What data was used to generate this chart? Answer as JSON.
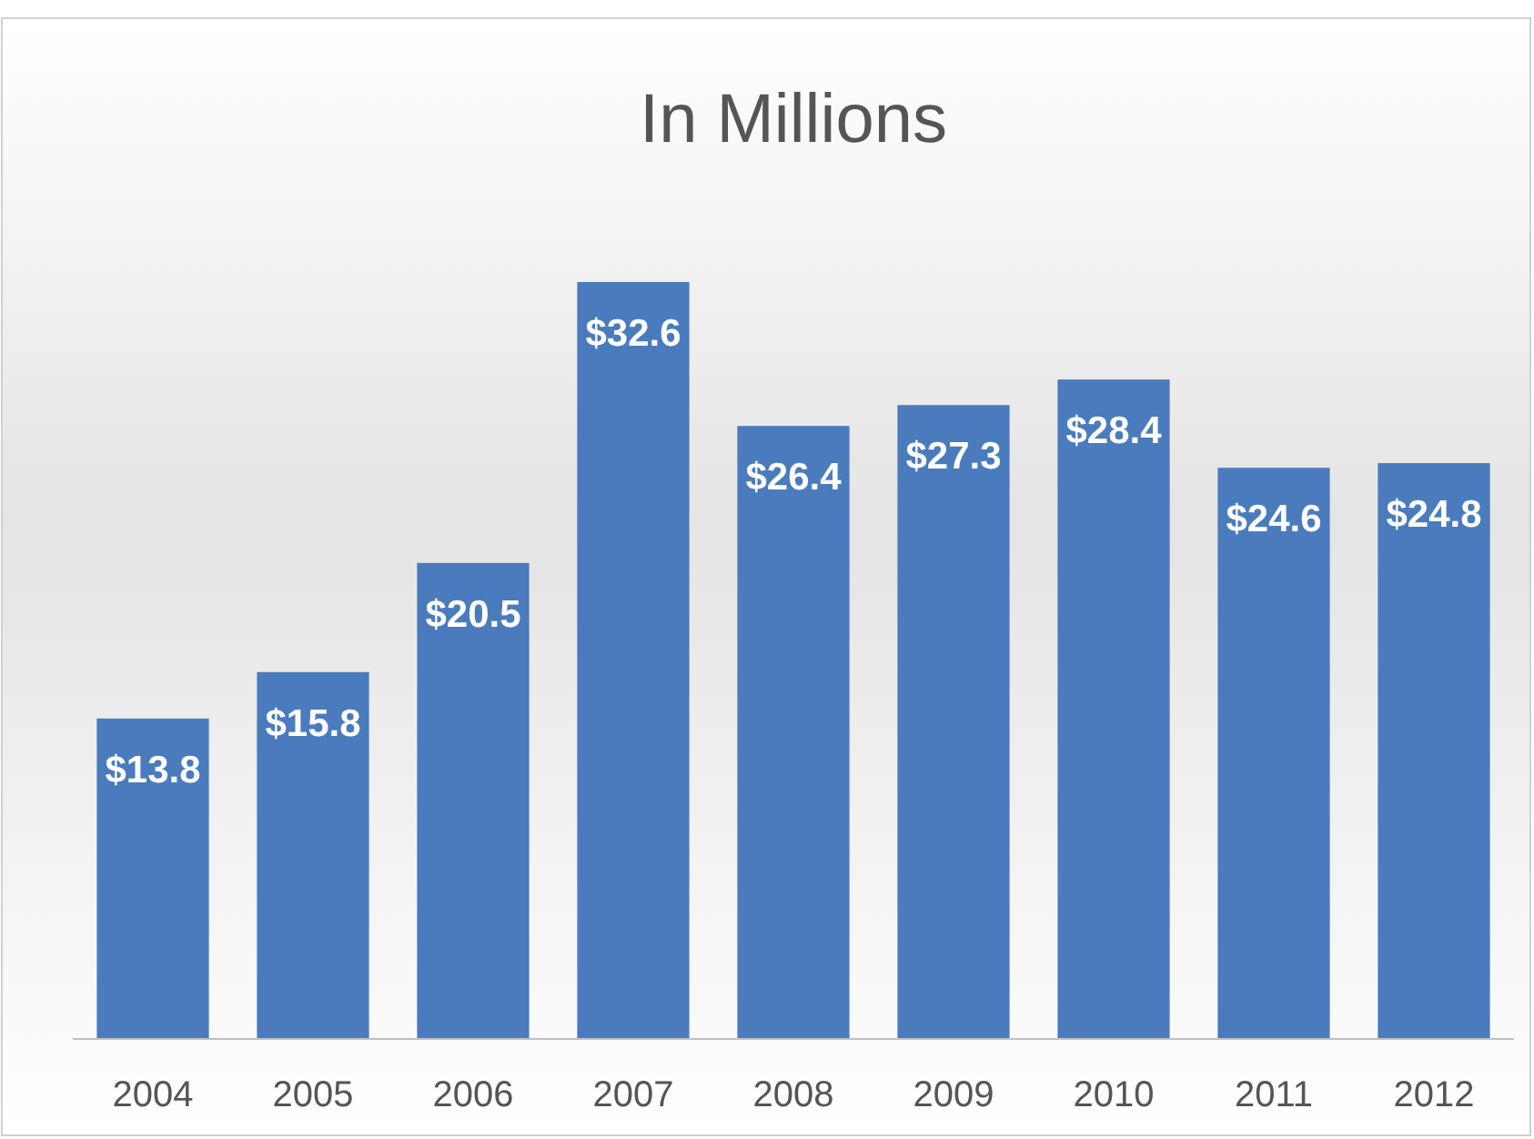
{
  "chart_data": {
    "type": "bar",
    "title": "In Millions",
    "categories": [
      "2004",
      "2005",
      "2006",
      "2007",
      "2008",
      "2009",
      "2010",
      "2011",
      "2012"
    ],
    "values": [
      13.8,
      15.8,
      20.5,
      32.6,
      26.4,
      27.3,
      28.4,
      24.6,
      24.8
    ],
    "value_labels": [
      "$13.8",
      "$15.8",
      "$20.5",
      "$32.6",
      "$26.4",
      "$27.3",
      "$28.4",
      "$24.6",
      "$24.8"
    ],
    "color": "#4a7bbd"
  }
}
